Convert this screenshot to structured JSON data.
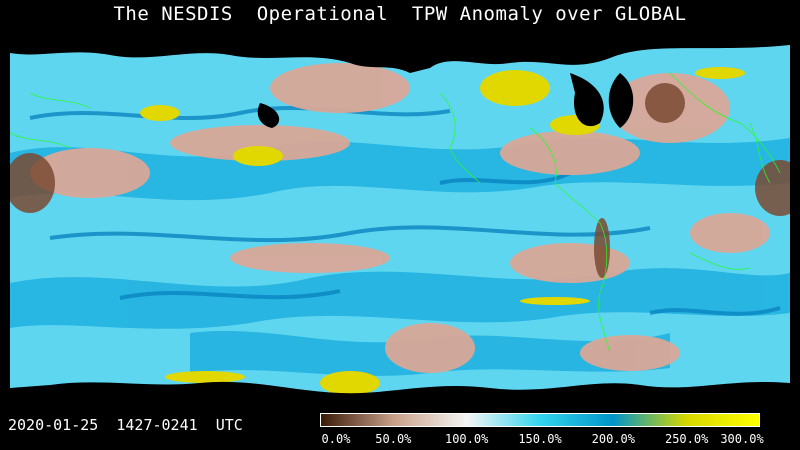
{
  "title": "The NESDIS  Operational  TPW Anomaly over GLOBAL",
  "timestamp": "2020-01-25  1427-0241  UTC",
  "colorbar": {
    "stops": [
      "#3a1a08",
      "#c9a08a",
      "#f5f5f5",
      "#33d5ee",
      "#0095c8",
      "#d6d600",
      "#ffff00"
    ],
    "tick_labels": [
      "0.0%",
      "50.0%",
      "100.0%",
      "150.0%",
      "200.0%",
      "250.0%",
      "300.0%"
    ],
    "tick_values": [
      0,
      50,
      100,
      150,
      200,
      250,
      300
    ]
  },
  "palette": {
    "ocean_base": "#5fd6f0",
    "moist": "#1fb0e0",
    "deep_moist": "#0a84c0",
    "dry": "#d9a898",
    "very_dry": "#7a4a32",
    "extreme": "#e0d800",
    "coastline": "#22ff22",
    "no_data": "#000000"
  }
}
